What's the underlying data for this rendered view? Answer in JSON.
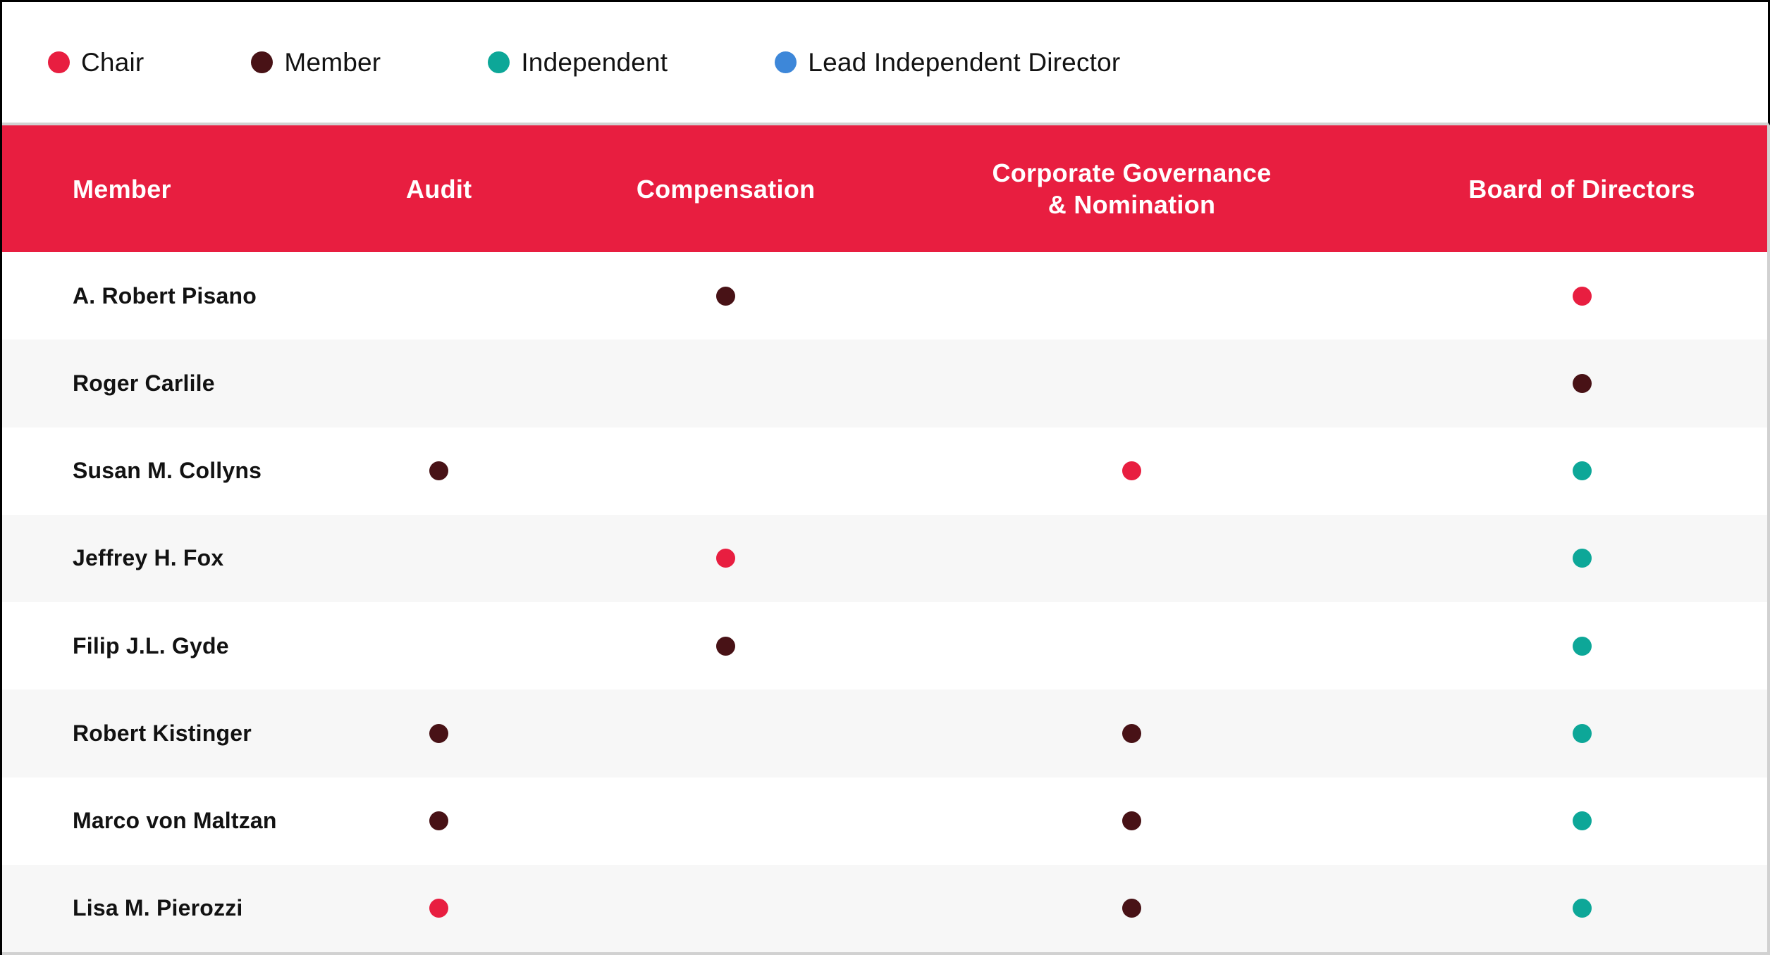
{
  "legend": {
    "items": [
      {
        "role": "chair",
        "label": "Chair",
        "color": "#E81E40"
      },
      {
        "role": "member",
        "label": "Member",
        "color": "#481216"
      },
      {
        "role": "independent",
        "label": "Independent",
        "color": "#0DA798"
      },
      {
        "role": "lead",
        "label": "Lead Independent Director",
        "color": "#3D87D9"
      }
    ]
  },
  "table": {
    "header_bg": "#E81E40",
    "columns": [
      {
        "key": "name",
        "label": "Member"
      },
      {
        "key": "audit",
        "label": "Audit"
      },
      {
        "key": "compensation",
        "label": "Compensation"
      },
      {
        "key": "governance",
        "label": "Corporate Governance\n& Nomination"
      },
      {
        "key": "board",
        "label": "Board of Directors"
      }
    ],
    "roles": {
      "chair": "#E81E40",
      "member": "#481216",
      "independent": "#0DA798",
      "lead": "#3D87D9"
    },
    "rows": [
      {
        "name": "A. Robert Pisano",
        "audit": null,
        "compensation": "member",
        "governance": null,
        "board": "chair"
      },
      {
        "name": "Roger Carlile",
        "audit": null,
        "compensation": null,
        "governance": null,
        "board": "member"
      },
      {
        "name": "Susan M. Collyns",
        "audit": "member",
        "compensation": null,
        "governance": "chair",
        "board": "independent"
      },
      {
        "name": "Jeffrey H. Fox",
        "audit": null,
        "compensation": "chair",
        "governance": null,
        "board": "independent"
      },
      {
        "name": "Filip J.L. Gyde",
        "audit": null,
        "compensation": "member",
        "governance": null,
        "board": "independent"
      },
      {
        "name": "Robert Kistinger",
        "audit": "member",
        "compensation": null,
        "governance": "member",
        "board": "independent"
      },
      {
        "name": "Marco von Maltzan",
        "audit": "member",
        "compensation": null,
        "governance": "member",
        "board": "independent"
      },
      {
        "name": "Lisa M. Pierozzi",
        "audit": "chair",
        "compensation": null,
        "governance": "member",
        "board": "independent"
      }
    ]
  }
}
